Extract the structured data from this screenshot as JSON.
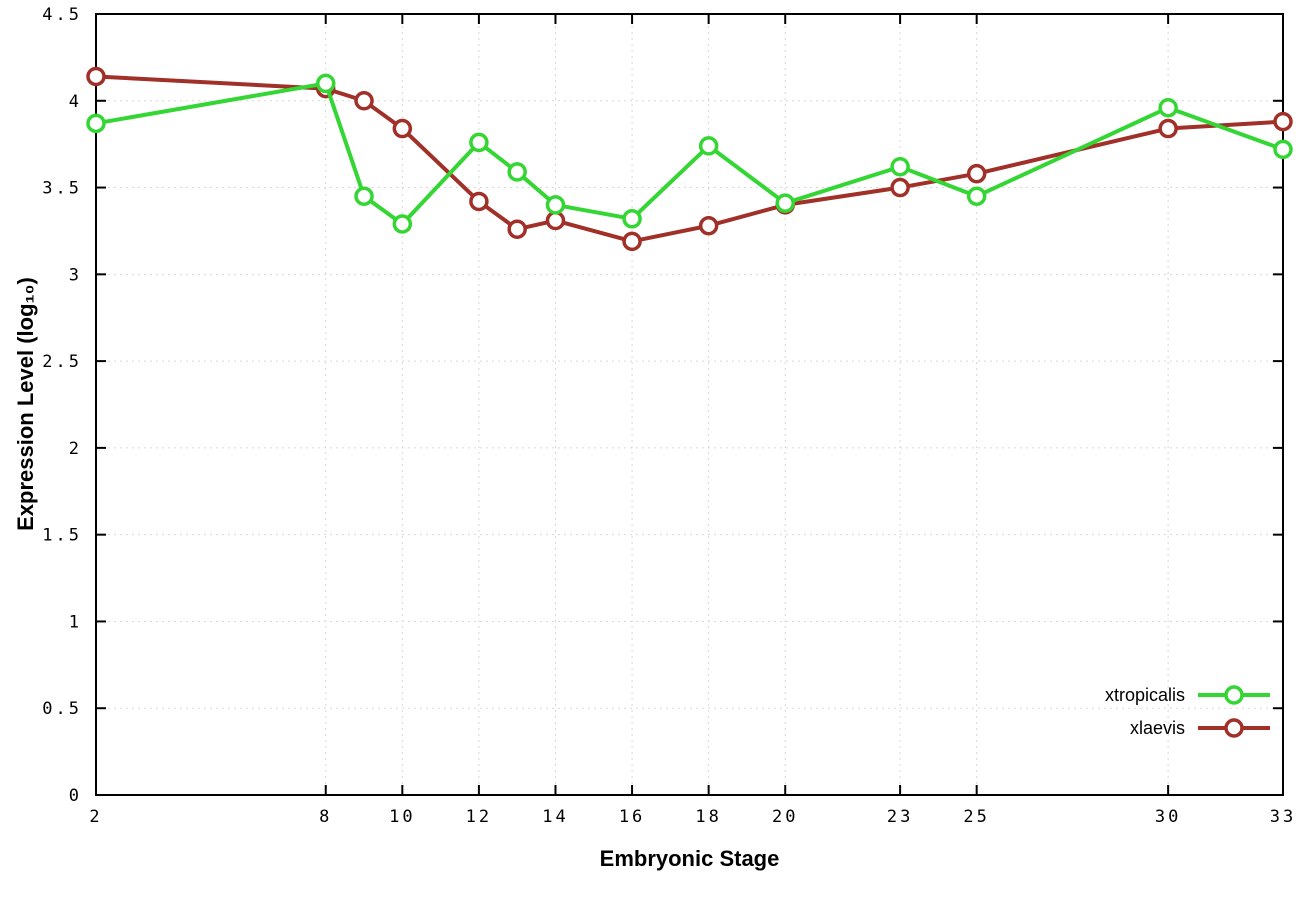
{
  "chart_data": {
    "type": "line",
    "title": "",
    "xlabel": "Embryonic Stage",
    "ylabel": "Expression Level (log₁₀)",
    "xlim": [
      2,
      33
    ],
    "ylim": [
      0,
      4.5
    ],
    "grid": true,
    "legend_position": "bottom-right",
    "xticks": [
      2,
      8,
      10,
      12,
      14,
      16,
      18,
      20,
      23,
      25,
      30,
      33
    ],
    "yticks": [
      0,
      0.5,
      1,
      1.5,
      2,
      2.5,
      3,
      3.5,
      4,
      4.5
    ],
    "x": [
      2,
      8,
      9,
      10,
      12,
      13,
      14,
      16,
      18,
      20,
      23,
      25,
      30,
      33
    ],
    "series": [
      {
        "name": "xtropicalis",
        "color": "#33d633",
        "values": [
          3.87,
          4.1,
          3.45,
          3.29,
          3.76,
          3.59,
          3.4,
          3.32,
          3.74,
          3.41,
          3.62,
          3.45,
          3.96,
          3.72
        ]
      },
      {
        "name": "xlaevis",
        "color": "#a03028",
        "values": [
          4.14,
          4.07,
          4.0,
          3.84,
          3.42,
          3.26,
          3.31,
          3.19,
          3.28,
          3.4,
          3.5,
          3.58,
          3.84,
          3.88
        ]
      }
    ]
  }
}
